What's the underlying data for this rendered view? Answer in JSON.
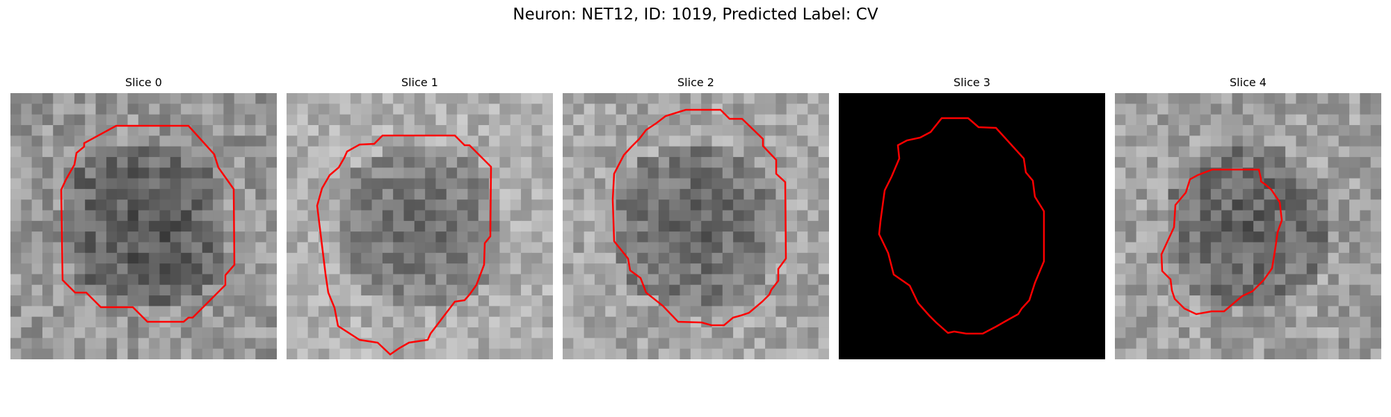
{
  "figure": {
    "title": "Neuron: NET12, ID: 1019, Predicted Label: CV"
  },
  "panels": [
    {
      "title": "Slice 0",
      "background": "noise",
      "seed": 11,
      "mean": 150,
      "spread": 70
    },
    {
      "title": "Slice 1",
      "background": "noise",
      "seed": 23,
      "mean": 175,
      "spread": 60
    },
    {
      "title": "Slice 2",
      "background": "noise",
      "seed": 37,
      "mean": 165,
      "spread": 65
    },
    {
      "title": "Slice 3",
      "background": "black",
      "seed": 0,
      "mean": 0,
      "spread": 0
    },
    {
      "title": "Slice 4",
      "background": "noise",
      "seed": 53,
      "mean": 160,
      "spread": 70
    }
  ],
  "contour_color": "#ff0000"
}
